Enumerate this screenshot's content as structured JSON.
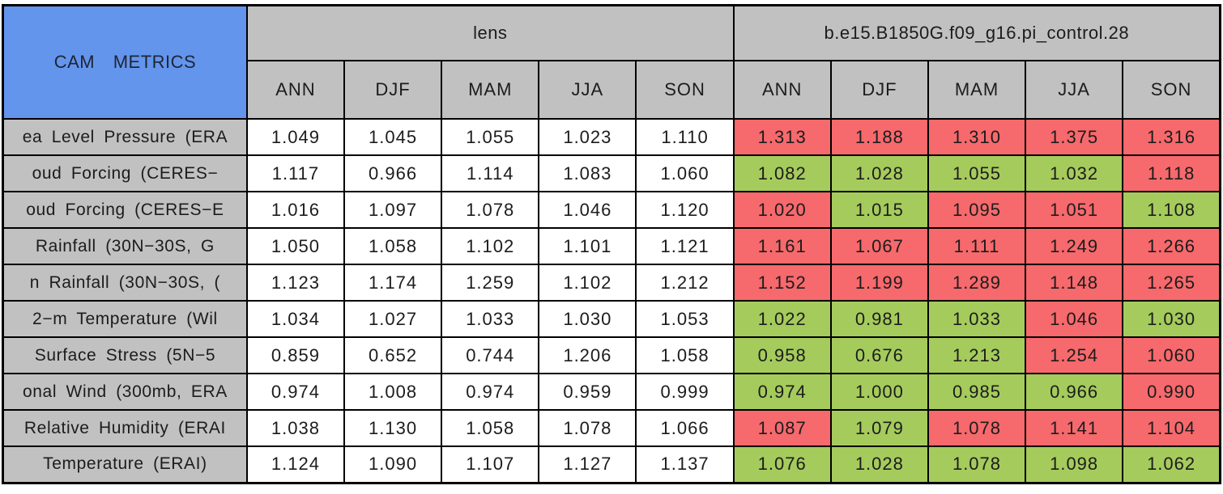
{
  "title": "CAM METRICS",
  "colors": {
    "blue_header": "#6495ED",
    "gray_header": "#C1C1C1",
    "worse_red": "#F6696C",
    "better_green": "#A5CB5C",
    "border_black": "#000000",
    "cell_white": "#FFFFFF"
  },
  "chart_data": {
    "type": "table",
    "title": "CAM METRICS",
    "column_groups": [
      "lens",
      "b.e15.B1850G.f09_g16.pi_control.28"
    ],
    "seasons": [
      "ANN",
      "DJF",
      "MAM",
      "JJA",
      "SON"
    ],
    "rows": [
      {
        "label": "ea Level Pressure (ERA",
        "lens": [
          "1.049",
          "1.045",
          "1.055",
          "1.023",
          "1.110"
        ],
        "control": [
          {
            "v": "1.313",
            "c": "red"
          },
          {
            "v": "1.188",
            "c": "red"
          },
          {
            "v": "1.310",
            "c": "red"
          },
          {
            "v": "1.375",
            "c": "red"
          },
          {
            "v": "1.316",
            "c": "red"
          }
        ]
      },
      {
        "label": "oud Forcing (CERES−",
        "lens": [
          "1.117",
          "0.966",
          "1.114",
          "1.083",
          "1.060"
        ],
        "control": [
          {
            "v": "1.082",
            "c": "green"
          },
          {
            "v": "1.028",
            "c": "green"
          },
          {
            "v": "1.055",
            "c": "green"
          },
          {
            "v": "1.032",
            "c": "green"
          },
          {
            "v": "1.118",
            "c": "red"
          }
        ]
      },
      {
        "label": "oud Forcing (CERES−E",
        "lens": [
          "1.016",
          "1.097",
          "1.078",
          "1.046",
          "1.120"
        ],
        "control": [
          {
            "v": "1.020",
            "c": "red"
          },
          {
            "v": "1.015",
            "c": "green"
          },
          {
            "v": "1.095",
            "c": "red"
          },
          {
            "v": "1.051",
            "c": "red"
          },
          {
            "v": "1.108",
            "c": "green"
          }
        ]
      },
      {
        "label": "Rainfall (30N−30S, G",
        "lens": [
          "1.050",
          "1.058",
          "1.102",
          "1.101",
          "1.121"
        ],
        "control": [
          {
            "v": "1.161",
            "c": "red"
          },
          {
            "v": "1.067",
            "c": "red"
          },
          {
            "v": "1.111",
            "c": "red"
          },
          {
            "v": "1.249",
            "c": "red"
          },
          {
            "v": "1.266",
            "c": "red"
          }
        ]
      },
      {
        "label": "n Rainfall (30N−30S, (",
        "lens": [
          "1.123",
          "1.174",
          "1.259",
          "1.102",
          "1.212"
        ],
        "control": [
          {
            "v": "1.152",
            "c": "red"
          },
          {
            "v": "1.199",
            "c": "red"
          },
          {
            "v": "1.289",
            "c": "red"
          },
          {
            "v": "1.148",
            "c": "red"
          },
          {
            "v": "1.265",
            "c": "red"
          }
        ]
      },
      {
        "label": "2−m Temperature (Wil",
        "lens": [
          "1.034",
          "1.027",
          "1.033",
          "1.030",
          "1.053"
        ],
        "control": [
          {
            "v": "1.022",
            "c": "green"
          },
          {
            "v": "0.981",
            "c": "green"
          },
          {
            "v": "1.033",
            "c": "green"
          },
          {
            "v": "1.046",
            "c": "red"
          },
          {
            "v": "1.030",
            "c": "green"
          }
        ]
      },
      {
        "label": "Surface Stress (5N−5",
        "lens": [
          "0.859",
          "0.652",
          "0.744",
          "1.206",
          "1.058"
        ],
        "control": [
          {
            "v": "0.958",
            "c": "green"
          },
          {
            "v": "0.676",
            "c": "green"
          },
          {
            "v": "1.213",
            "c": "green"
          },
          {
            "v": "1.254",
            "c": "red"
          },
          {
            "v": "1.060",
            "c": "red"
          }
        ]
      },
      {
        "label": "onal Wind (300mb, ERA",
        "lens": [
          "0.974",
          "1.008",
          "0.974",
          "0.959",
          "0.999"
        ],
        "control": [
          {
            "v": "0.974",
            "c": "green"
          },
          {
            "v": "1.000",
            "c": "green"
          },
          {
            "v": "0.985",
            "c": "green"
          },
          {
            "v": "0.966",
            "c": "green"
          },
          {
            "v": "0.990",
            "c": "red"
          }
        ]
      },
      {
        "label": "Relative Humidity (ERAI",
        "lens": [
          "1.038",
          "1.130",
          "1.058",
          "1.078",
          "1.066"
        ],
        "control": [
          {
            "v": "1.087",
            "c": "red"
          },
          {
            "v": "1.079",
            "c": "green"
          },
          {
            "v": "1.078",
            "c": "red"
          },
          {
            "v": "1.141",
            "c": "red"
          },
          {
            "v": "1.104",
            "c": "red"
          }
        ]
      },
      {
        "label": "Temperature (ERAI)",
        "lens": [
          "1.124",
          "1.090",
          "1.107",
          "1.127",
          "1.137"
        ],
        "control": [
          {
            "v": "1.076",
            "c": "green"
          },
          {
            "v": "1.028",
            "c": "green"
          },
          {
            "v": "1.078",
            "c": "green"
          },
          {
            "v": "1.098",
            "c": "green"
          },
          {
            "v": "1.062",
            "c": "green"
          }
        ]
      }
    ]
  }
}
